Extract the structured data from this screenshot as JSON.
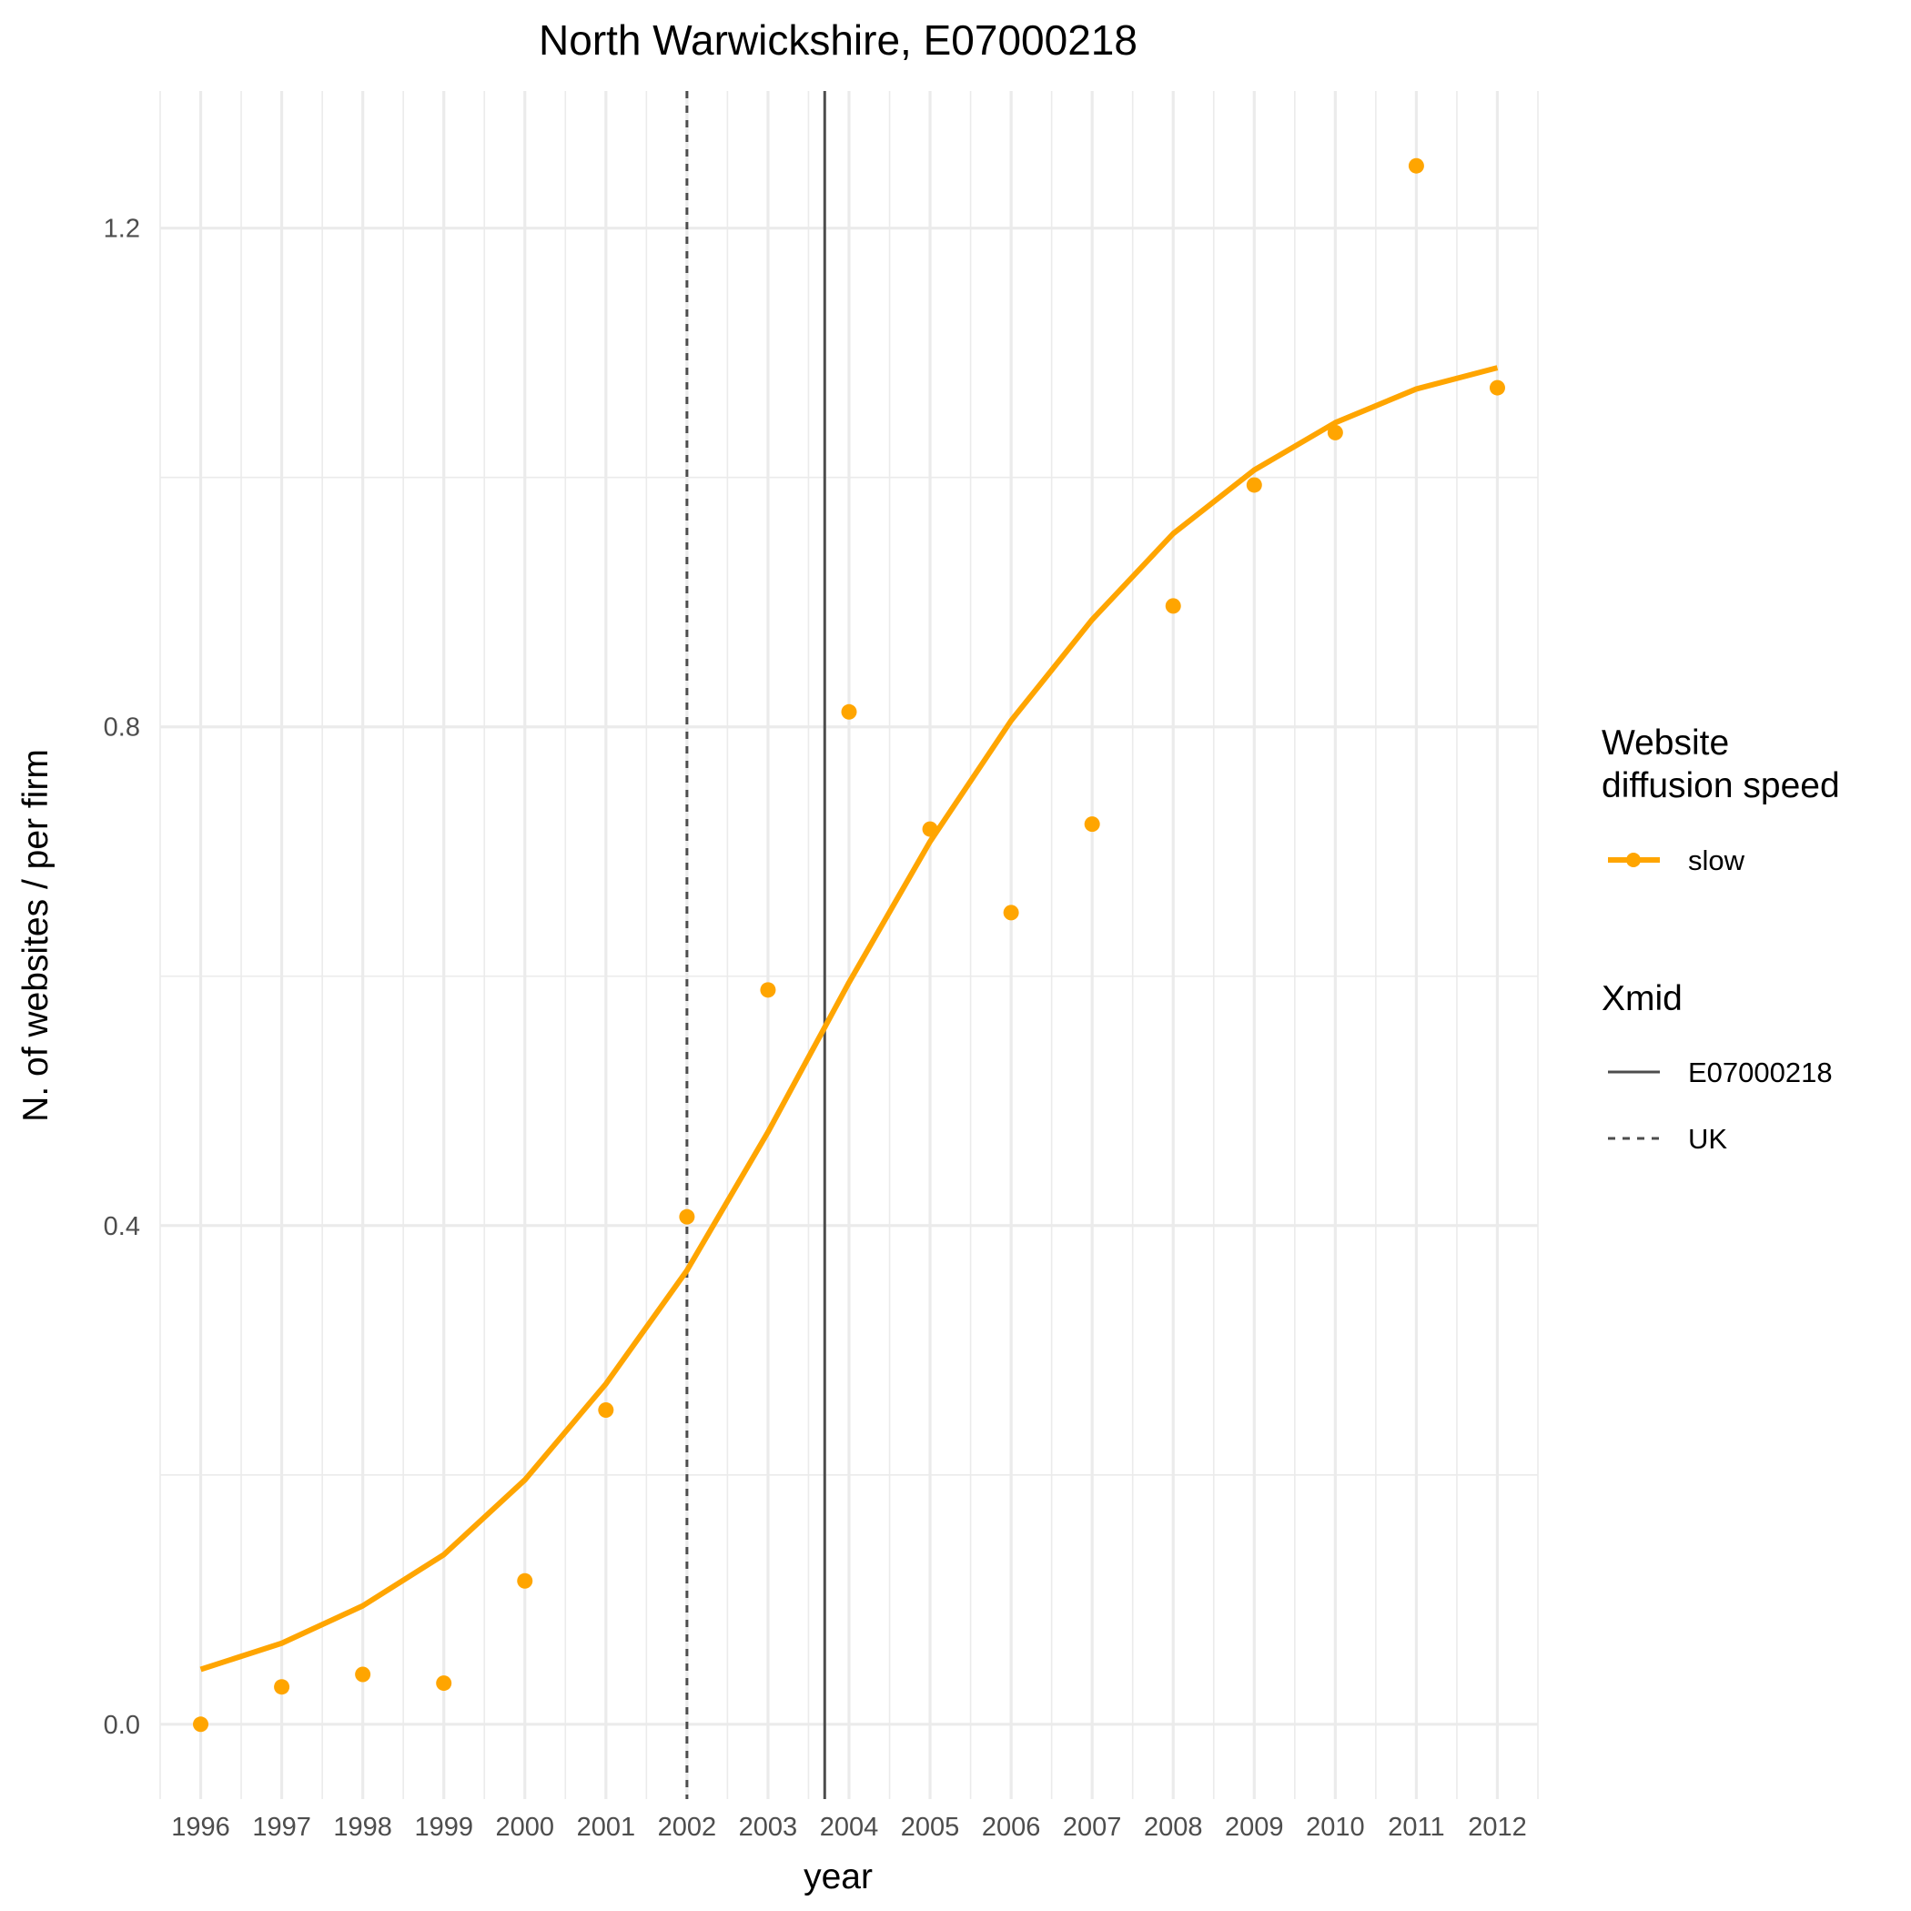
{
  "chart_data": {
    "type": "line",
    "title": "North Warwickshire, E07000218",
    "xlabel": "year",
    "ylabel": "N. of websites / per firm",
    "x": [
      1996,
      1997,
      1998,
      1999,
      2000,
      2001,
      2002,
      2003,
      2004,
      2005,
      2006,
      2007,
      2008,
      2009,
      2010,
      2011,
      2012
    ],
    "x_tick_labels": [
      "1996",
      "1997",
      "1998",
      "1999",
      "2000",
      "2001",
      "2002",
      "2003",
      "2004",
      "2005",
      "2006",
      "2007",
      "2008",
      "2009",
      "2010",
      "2011",
      "2012"
    ],
    "xlim": [
      1995.5,
      2012.5
    ],
    "ylim": [
      -0.06,
      1.31
    ],
    "y_ticks": [
      0.0,
      0.4,
      0.8,
      1.2
    ],
    "y_tick_labels": [
      "0.0",
      "0.4",
      "0.8",
      "1.2"
    ],
    "y_minor_ticks": [
      0.2,
      0.6,
      1.0
    ],
    "grid": true,
    "series": [
      {
        "name": "slow",
        "kind": "observed points",
        "color": "#FFA500",
        "values": [
          0.0,
          0.03,
          0.04,
          0.033,
          0.115,
          0.252,
          0.407,
          0.589,
          0.812,
          0.718,
          0.651,
          0.722,
          0.897,
          0.994,
          1.036,
          1.25,
          1.072
        ]
      },
      {
        "name": "slow",
        "kind": "fitted curve",
        "color": "#FFA500",
        "values": [
          0.044,
          0.065,
          0.095,
          0.136,
          0.196,
          0.273,
          0.364,
          0.475,
          0.595,
          0.708,
          0.805,
          0.886,
          0.955,
          1.006,
          1.044,
          1.071,
          1.088
        ]
      }
    ],
    "vlines": [
      {
        "name": "E07000218",
        "x": 2003.7,
        "style": "solid",
        "color": "#4d4d4d"
      },
      {
        "name": "UK",
        "x": 2002.0,
        "style": "dashed",
        "color": "#4d4d4d"
      }
    ],
    "legend": {
      "placement": "right",
      "groups": [
        {
          "title": [
            "Website",
            "diffusion speed"
          ],
          "items": [
            "slow"
          ]
        },
        {
          "title": [
            "Xmid"
          ],
          "items": [
            "E07000218",
            "UK"
          ]
        }
      ]
    }
  }
}
